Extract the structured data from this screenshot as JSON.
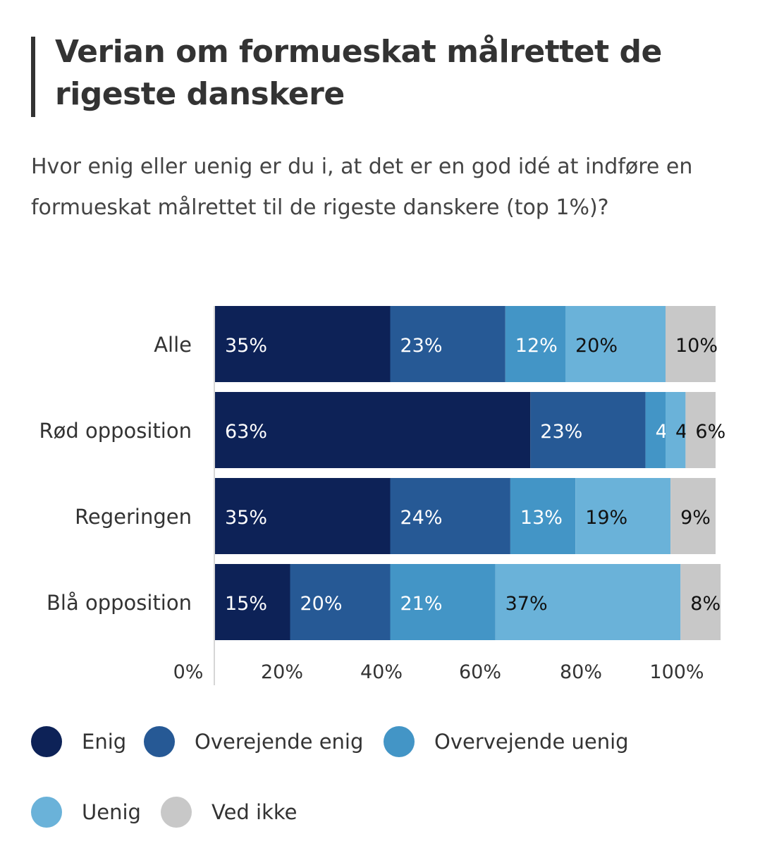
{
  "title": "Verian om formueskat målrettet de rigeste danskere",
  "subtitle": "Hvor enig eller uenig er du i, at det er en god idé at indføre en formueskat målrettet til de rigeste danskere (top 1%)?",
  "chart_data": {
    "type": "bar",
    "orientation": "horizontal",
    "stacked": true,
    "categories": [
      "Alle",
      "Rød opposition",
      "Regeringen",
      "Blå opposition"
    ],
    "series": [
      {
        "name": "Enig",
        "color": "#0d2257",
        "values": [
          35,
          63,
          35,
          15
        ],
        "labels": [
          "35%",
          "63%",
          "35%",
          "15%"
        ]
      },
      {
        "name": "Overejende enig",
        "color": "#265995",
        "values": [
          23,
          23,
          24,
          20
        ],
        "labels": [
          "23%",
          "23%",
          "24%",
          "20%"
        ]
      },
      {
        "name": "Overvejende uenig",
        "color": "#4395c6",
        "values": [
          12,
          4,
          13,
          21
        ],
        "labels": [
          "12%",
          "4%",
          "13%",
          "21%"
        ]
      },
      {
        "name": "Uenig",
        "color": "#6ab2d9",
        "values": [
          20,
          4,
          19,
          37
        ],
        "labels": [
          "20%",
          "4%",
          "19%",
          "37%"
        ]
      },
      {
        "name": "Ved ikke",
        "color": "#c8c8c8",
        "values": [
          10,
          6,
          9,
          8
        ],
        "labels": [
          "10%",
          "6%",
          "9%",
          "8%"
        ]
      }
    ],
    "xlim": [
      0,
      100
    ],
    "xticks": [
      "0%",
      "20%",
      "40%",
      "60%",
      "80%",
      "100%"
    ],
    "legend_position": "bottom"
  }
}
